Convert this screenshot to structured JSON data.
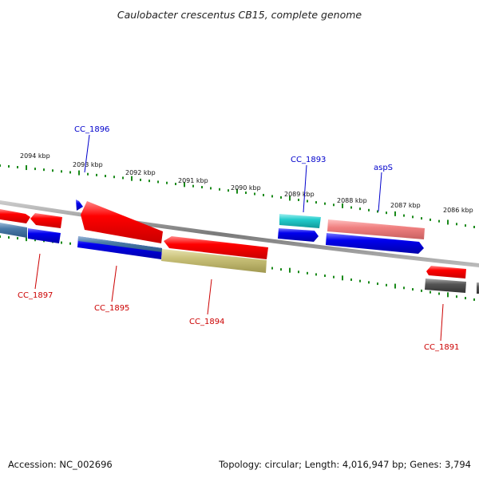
{
  "title": "Caulobacter crescentus CB15, complete genome",
  "footer": {
    "accession": "Accession: NC_002696",
    "topology": "Topology: circular; Length: 4,016,947 bp; Genes: 3,794"
  },
  "ruler": {
    "kbp_labels": [
      "2094 kbp",
      "2093 kbp",
      "2092 kbp",
      "2091 kbp",
      "2090 kbp",
      "2089 kbp",
      "2088 kbp",
      "2087 kbp",
      "2086 kbp"
    ]
  },
  "genes_top": {
    "cc1896": "CC_1896",
    "cc1893": "CC_1893",
    "asps": "aspS"
  },
  "genes_bottom": {
    "cc1897": "CC_1897",
    "cc1895": "CC_1895",
    "cc1894": "CC_1894",
    "cc1891": "CC_1891"
  },
  "colors": {
    "red": "#ff0000",
    "blue": "#0000ee",
    "steelblue": "#4a7aa8",
    "cyan": "#22cccc",
    "salmon": "#f08080",
    "olive": "#c8c078",
    "gray": "#555555",
    "backbone": "#888888",
    "tick_green": "#1a8a1a",
    "label_blue": "#0000cc",
    "label_red": "#cc0000"
  }
}
